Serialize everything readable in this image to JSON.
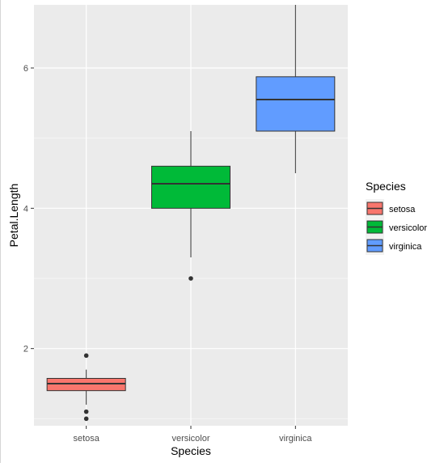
{
  "chart_data": {
    "type": "boxplot",
    "xlabel": "Species",
    "ylabel": "Petal.Length",
    "categories": [
      "setosa",
      "versicolor",
      "virginica"
    ],
    "ylim": [
      0.9,
      6.9
    ],
    "y_ticks": [
      2,
      4,
      6
    ],
    "y_tick_labels": [
      "2",
      "4",
      "6"
    ],
    "grid": true,
    "legend": {
      "title": "Species",
      "position": "right",
      "entries": [
        "setosa",
        "versicolor",
        "virginica"
      ]
    },
    "colors": {
      "setosa": "#F8766D",
      "versicolor": "#00BA38",
      "virginica": "#619CFF",
      "panel_background": "#EBEBEB",
      "grid": "#FFFFFF"
    },
    "boxes": [
      {
        "category": "setosa",
        "min": 1.2,
        "q1": 1.4,
        "median": 1.5,
        "q3": 1.575,
        "max": 1.7,
        "outliers": [
          1.0,
          1.1,
          1.9
        ]
      },
      {
        "category": "versicolor",
        "min": 3.3,
        "q1": 4.0,
        "median": 4.35,
        "q3": 4.6,
        "max": 5.1,
        "outliers": [
          3.0
        ]
      },
      {
        "category": "virginica",
        "min": 4.5,
        "q1": 5.1,
        "median": 5.55,
        "q3": 5.875,
        "max": 6.9,
        "outliers": []
      }
    ]
  }
}
